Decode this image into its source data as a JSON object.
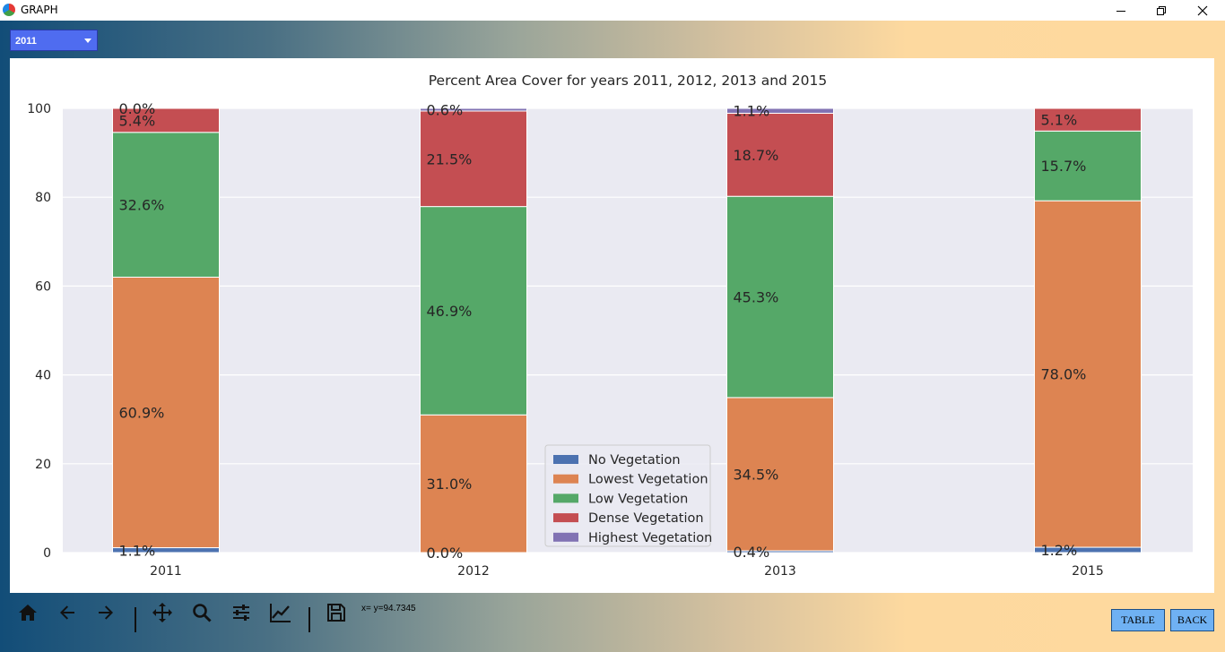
{
  "window": {
    "title": "GRAPH"
  },
  "controls": {
    "year_selected": "2011"
  },
  "status": {
    "coord_readout": "x= y=94.7345"
  },
  "buttons": {
    "table": "TABLE",
    "back": "BACK"
  },
  "toolbar": {
    "tools": [
      "home-icon",
      "back-arrow-icon",
      "forward-arrow-icon",
      "pan-icon",
      "zoom-icon",
      "configure-subplots-icon",
      "edit-axis-icon",
      "save-icon"
    ]
  },
  "colors": {
    "no_vegetation": "#4c72b0",
    "lowest_vegetation": "#dd8452",
    "low_vegetation": "#55a868",
    "dense_vegetation": "#c44e52",
    "highest_vegetation": "#8172b3",
    "plot_bg": "#eaeaf2"
  },
  "chart_data": {
    "type": "bar",
    "stacked": true,
    "title": "Percent Area Cover for years 2011, 2012, 2013 and 2015",
    "xlabel": "",
    "ylabel": "",
    "ylim": [
      0,
      100
    ],
    "yticks": [
      "0",
      "20",
      "40",
      "60",
      "80",
      "100"
    ],
    "categories": [
      "2011",
      "2012",
      "2013",
      "2015"
    ],
    "grid": true,
    "legend_position": "bottom-center",
    "series": [
      {
        "name": "No Vegetation",
        "values": [
          1.1,
          0.0,
          0.4,
          1.2
        ],
        "labels": [
          "1.1%",
          "0.0%",
          "0.4%",
          "1.2%"
        ]
      },
      {
        "name": "Lowest Vegetation",
        "values": [
          60.9,
          31.0,
          34.5,
          78.0
        ],
        "labels": [
          "60.9%",
          "31.0%",
          "34.5%",
          "78.0%"
        ]
      },
      {
        "name": "Low Vegetation",
        "values": [
          32.6,
          46.9,
          45.3,
          15.7
        ],
        "labels": [
          "32.6%",
          "46.9%",
          "45.3%",
          "15.7%"
        ]
      },
      {
        "name": "Dense Vegetation",
        "values": [
          5.4,
          21.5,
          18.7,
          5.1
        ],
        "labels": [
          "5.4%",
          "21.5%",
          "18.7%",
          "5.1%"
        ]
      },
      {
        "name": "Highest Vegetation",
        "values": [
          0.0,
          0.6,
          1.1,
          0.0
        ],
        "labels": [
          "0.0%",
          "0.6%",
          "1.1%",
          null
        ]
      }
    ]
  }
}
